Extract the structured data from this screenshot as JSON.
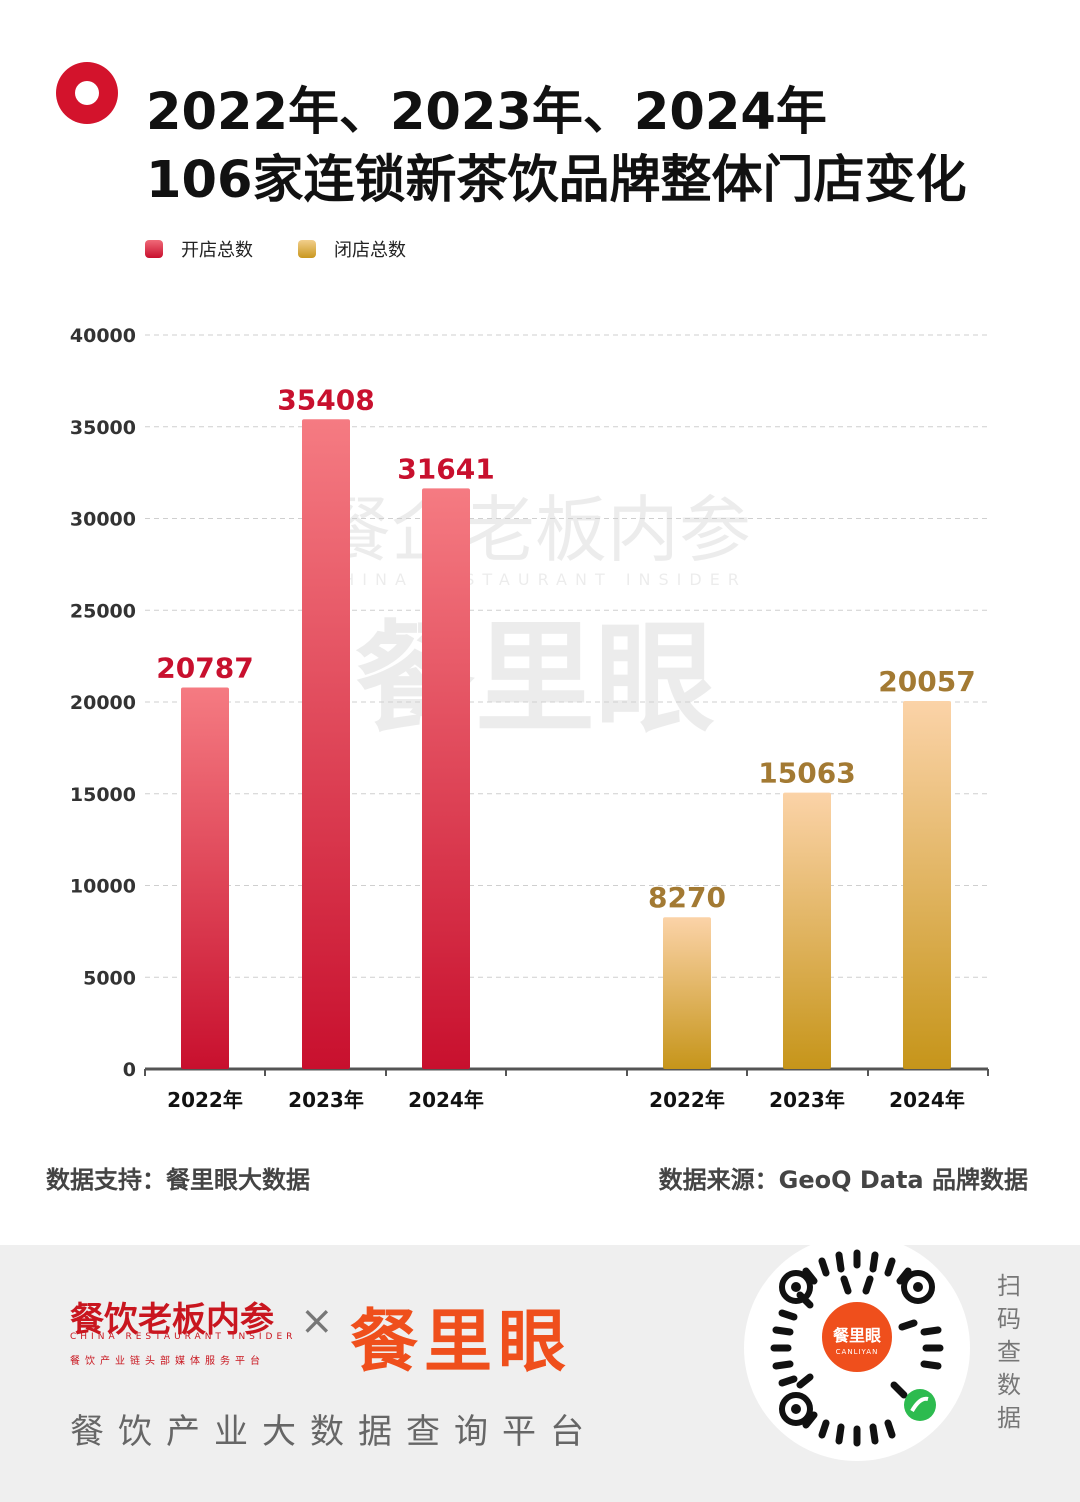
{
  "title": {
    "line1": "2022年、2023年、2024年",
    "line2": "106家连锁新茶饮品牌整体门店变化"
  },
  "legend": [
    {
      "label": "开店总数",
      "color": "#d3132c"
    },
    {
      "label": "闭店总数",
      "color": "#dba531"
    }
  ],
  "chart_data": {
    "type": "bar",
    "ylim": [
      0,
      40000
    ],
    "yticks": [
      0,
      5000,
      10000,
      15000,
      20000,
      25000,
      30000,
      35000,
      40000
    ],
    "grid": true,
    "legend_position": "top-left",
    "series": [
      {
        "name": "开店总数",
        "categories": [
          "2022年",
          "2023年",
          "2024年"
        ],
        "values": [
          20787,
          35408,
          31641
        ],
        "label_color": "#c8102e"
      },
      {
        "name": "闭店总数",
        "categories": [
          "2022年",
          "2023年",
          "2024年"
        ],
        "values": [
          8270,
          15063,
          20057
        ],
        "label_color": "#a37a33"
      }
    ]
  },
  "watermark": {
    "line1": "餐企老板内参",
    "line2": "CHINA RESTAURANT INSIDER",
    "line3": "餐里眼"
  },
  "footer": {
    "left": "数据支持：餐里眼大数据",
    "right": "数据来源：GeoQ Data 品牌数据"
  },
  "bottom": {
    "brand1": "餐饮老板内参",
    "brand1_sub": "CHINA RESTAURANT INSIDER",
    "brand1_sub2": "餐饮产业链头部媒体服务平台",
    "times": "×",
    "brand2": "餐里眼",
    "platform": "餐饮产业大数据查询平台",
    "qr_center1": "餐里眼",
    "qr_center2": "CANLIYAN",
    "scan": "扫码查数据"
  }
}
